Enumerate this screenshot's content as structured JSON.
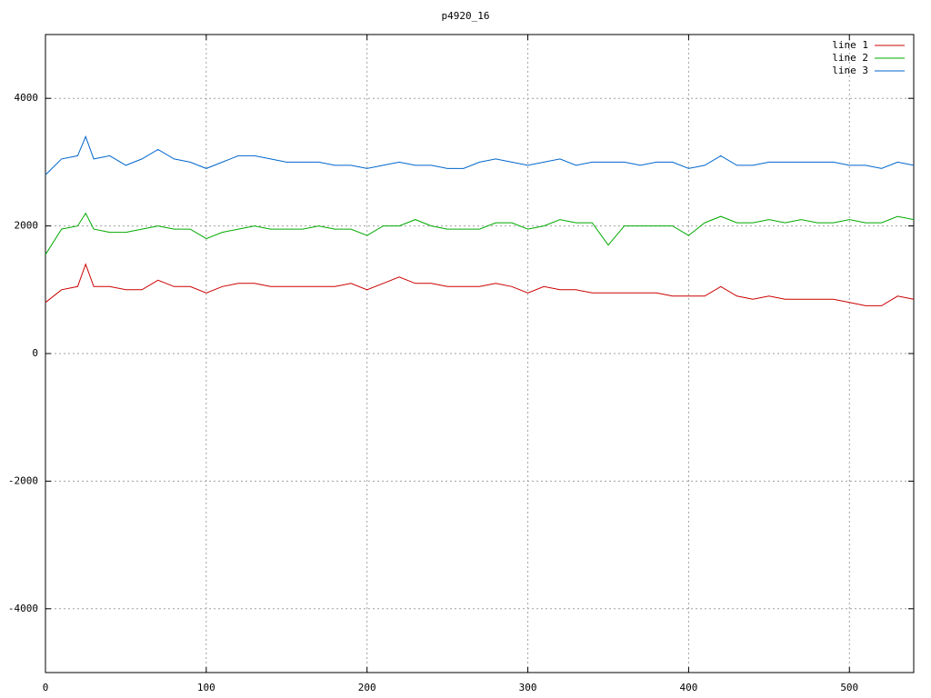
{
  "chart_data": {
    "type": "line",
    "title": "p4920_16",
    "x": [
      0,
      10,
      20,
      25,
      30,
      40,
      50,
      60,
      70,
      80,
      90,
      100,
      110,
      120,
      130,
      140,
      150,
      160,
      170,
      180,
      190,
      200,
      210,
      220,
      230,
      240,
      250,
      260,
      270,
      280,
      290,
      300,
      310,
      320,
      330,
      340,
      350,
      360,
      370,
      380,
      390,
      400,
      410,
      420,
      430,
      440,
      450,
      460,
      470,
      480,
      490,
      500,
      510,
      520,
      530,
      540
    ],
    "series": [
      {
        "name": "line 1",
        "color": "#cc0000",
        "values": [
          800,
          1000,
          1050,
          1400,
          1050,
          1050,
          1000,
          1000,
          1150,
          1050,
          1050,
          950,
          1050,
          1100,
          1100,
          1050,
          1050,
          1050,
          1050,
          1050,
          1100,
          1000,
          1100,
          1200,
          1100,
          1100,
          1050,
          1050,
          1050,
          1100,
          1050,
          950,
          1050,
          1000,
          1000,
          950,
          950,
          950,
          950,
          950,
          900,
          900,
          900,
          1050,
          900,
          850,
          900,
          850,
          850,
          850,
          850,
          800,
          750,
          750,
          900,
          850
        ]
      },
      {
        "name": "line 2",
        "color": "#00aa00",
        "values": [
          1550,
          1950,
          2000,
          2200,
          1950,
          1900,
          1900,
          1950,
          2000,
          1950,
          1950,
          1800,
          1900,
          1950,
          2000,
          1950,
          1950,
          1950,
          2000,
          1950,
          1950,
          1850,
          2000,
          2000,
          2100,
          2000,
          1950,
          1950,
          1950,
          2050,
          2050,
          1950,
          2000,
          2100,
          2050,
          2050,
          1700,
          2000,
          2000,
          2000,
          2000,
          1850,
          2050,
          2150,
          2050,
          2050,
          2100,
          2050,
          2100,
          2050,
          2050,
          2100,
          2050,
          2050,
          2150,
          2100
        ]
      },
      {
        "name": "line 3",
        "color": "#0066cc",
        "values": [
          2800,
          3050,
          3100,
          3400,
          3050,
          3100,
          2950,
          3050,
          3200,
          3050,
          3000,
          2900,
          3000,
          3100,
          3100,
          3050,
          3000,
          3000,
          3000,
          2950,
          2950,
          2900,
          2950,
          3000,
          2950,
          2950,
          2900,
          2900,
          3000,
          3050,
          3000,
          2950,
          3000,
          3050,
          2950,
          3000,
          3000,
          3000,
          2950,
          3000,
          3000,
          2900,
          2950,
          3100,
          2950,
          2950,
          3000,
          3000,
          3000,
          3000,
          3000,
          2950,
          2950,
          2900,
          3000,
          2950
        ]
      }
    ],
    "xlim": [
      0,
      540
    ],
    "xticks": [
      0,
      100,
      200,
      300,
      400,
      500
    ],
    "ylim": [
      -5000,
      5000
    ],
    "yticks": [
      -4000,
      -2000,
      0,
      2000,
      4000
    ],
    "grid": true,
    "legend": "top-right"
  }
}
